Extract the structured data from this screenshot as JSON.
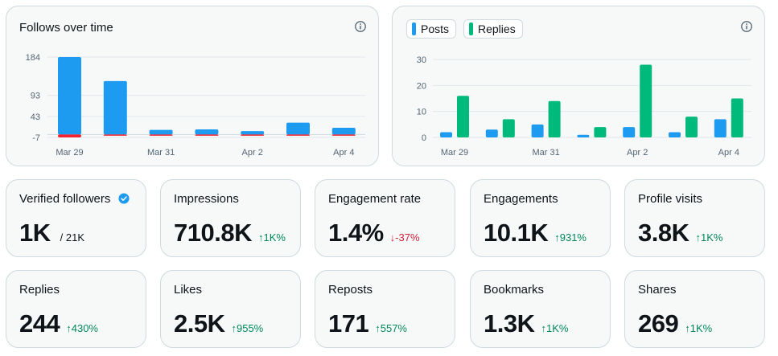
{
  "follows_chart": {
    "title": "Follows over time",
    "info_icon": "info-icon",
    "chart_data": {
      "type": "bar",
      "categories": [
        "Mar 29",
        "Mar 30",
        "Mar 31",
        "Apr 1",
        "Apr 2",
        "Apr 3",
        "Apr 4"
      ],
      "x_tick_labels": [
        "Mar 29",
        "Mar 31",
        "Apr 2",
        "Apr 4"
      ],
      "y_tick_labels": [
        "184",
        "93",
        "43",
        "-7"
      ],
      "series": [
        {
          "values": [
            184,
            127,
            11,
            12,
            8,
            28,
            16
          ],
          "color": "#1d9bf0"
        },
        {
          "values": [
            -7,
            -3,
            -3,
            -3,
            -3,
            -3,
            -3
          ],
          "color": "#f4212e"
        }
      ],
      "ylim": [
        -7,
        184
      ],
      "grid": true
    }
  },
  "posts_chart": {
    "legend": [
      {
        "label": "Posts",
        "color": "#1d9bf0"
      },
      {
        "label": "Replies",
        "color": "#00ba7c"
      }
    ],
    "info_icon": "info-icon",
    "chart_data": {
      "type": "bar",
      "categories": [
        "Mar 29",
        "Mar 30",
        "Mar 31",
        "Apr 1",
        "Apr 2",
        "Apr 3",
        "Apr 4"
      ],
      "x_tick_labels": [
        "Mar 29",
        "Mar 31",
        "Apr 2",
        "Apr 4"
      ],
      "y_tick_labels": [
        "30",
        "20",
        "10",
        "0"
      ],
      "series": [
        {
          "name": "Posts",
          "values": [
            2,
            3,
            5,
            1,
            4,
            2,
            7
          ],
          "color": "#1d9bf0"
        },
        {
          "name": "Replies",
          "values": [
            16,
            7,
            14,
            4,
            28,
            8,
            15
          ],
          "color": "#00ba7c"
        }
      ],
      "ylim": [
        0,
        30
      ],
      "grid": true
    }
  },
  "metrics": [
    {
      "label": "Verified followers",
      "value": "1K",
      "sub": "/ 21K",
      "delta": "",
      "dir": "",
      "verified_icon": "verified-badge-icon"
    },
    {
      "label": "Impressions",
      "value": "710.8K",
      "sub": "",
      "delta": "↑1K%",
      "dir": "up"
    },
    {
      "label": "Engagement rate",
      "value": "1.4%",
      "sub": "",
      "delta": "↓-37%",
      "dir": "down"
    },
    {
      "label": "Engagements",
      "value": "10.1K",
      "sub": "",
      "delta": "↑931%",
      "dir": "up"
    },
    {
      "label": "Profile visits",
      "value": "3.8K",
      "sub": "",
      "delta": "↑1K%",
      "dir": "up"
    },
    {
      "label": "Replies",
      "value": "244",
      "sub": "",
      "delta": "↑430%",
      "dir": "up"
    },
    {
      "label": "Likes",
      "value": "2.5K",
      "sub": "",
      "delta": "↑955%",
      "dir": "up"
    },
    {
      "label": "Reposts",
      "value": "171",
      "sub": "",
      "delta": "↑557%",
      "dir": "up"
    },
    {
      "label": "Bookmarks",
      "value": "1.3K",
      "sub": "",
      "delta": "↑1K%",
      "dir": "up"
    },
    {
      "label": "Shares",
      "value": "269",
      "sub": "",
      "delta": "↑1K%",
      "dir": "up"
    }
  ]
}
